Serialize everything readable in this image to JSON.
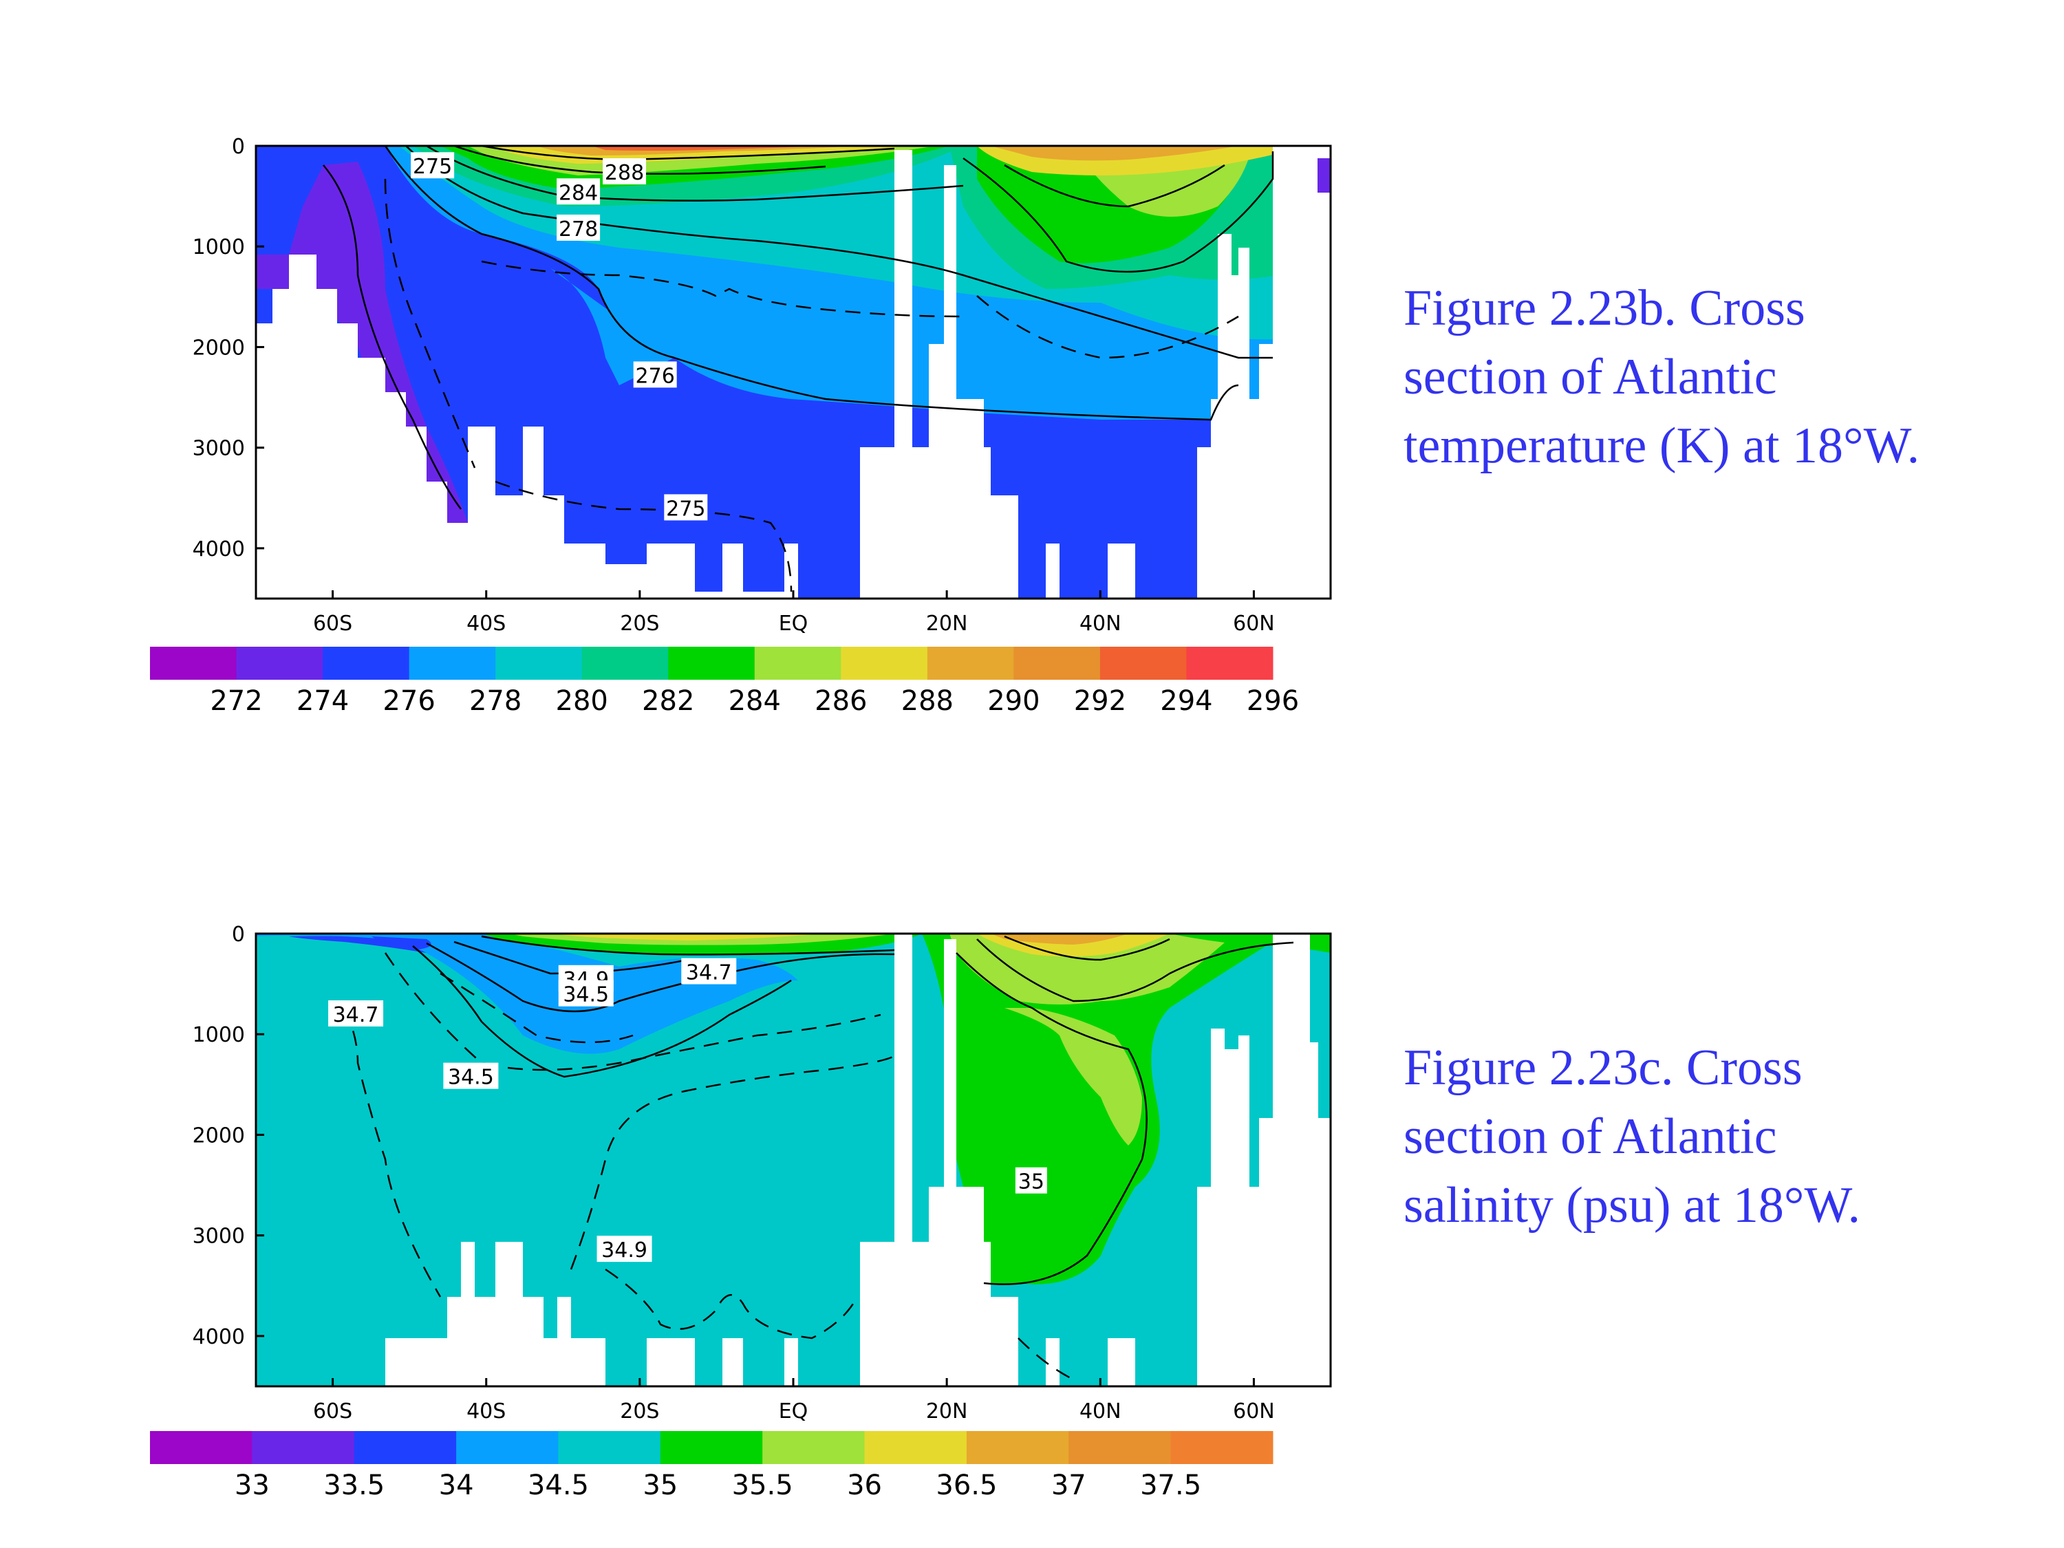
{
  "chart_data": [
    {
      "type": "heatmap",
      "title": "",
      "xlabel": "",
      "ylabel": "",
      "x_ticks": [
        "60S",
        "40S",
        "20S",
        "EQ",
        "20N",
        "40N",
        "60N"
      ],
      "x_tick_values": [
        -60,
        -40,
        -20,
        0,
        20,
        40,
        60
      ],
      "y_ticks": [
        "0",
        "1000",
        "2000",
        "3000",
        "4000"
      ],
      "y_tick_values": [
        0,
        1000,
        2000,
        3000,
        4000
      ],
      "xlim": [
        -70,
        70
      ],
      "ylim": [
        4500,
        0
      ],
      "colorbar": {
        "labels": [
          "272",
          "274",
          "276",
          "278",
          "280",
          "282",
          "284",
          "286",
          "288",
          "290",
          "292",
          "294",
          "296"
        ],
        "colors": [
          "#9b06c8",
          "#6a26e8",
          "#2040ff",
          "#08a0ff",
          "#00c8c8",
          "#00cc88",
          "#00d400",
          "#9fe23a",
          "#e6d92e",
          "#e6a82e",
          "#e6902e",
          "#f06030",
          "#f84048"
        ]
      },
      "contour_labels": [
        {
          "text": "288",
          "x": -22,
          "y": 260
        },
        {
          "text": "284",
          "x": -28,
          "y": 460
        },
        {
          "text": "278",
          "x": -28,
          "y": 820
        },
        {
          "text": "276",
          "x": -18,
          "y": 2280
        },
        {
          "text": "275",
          "x": -14,
          "y": 3600
        },
        {
          "text": "275",
          "x": -47,
          "y": 200
        }
      ]
    },
    {
      "type": "heatmap",
      "title": "",
      "xlabel": "",
      "ylabel": "",
      "x_ticks": [
        "60S",
        "40S",
        "20S",
        "EQ",
        "20N",
        "40N",
        "60N"
      ],
      "x_tick_values": [
        -60,
        -40,
        -20,
        0,
        20,
        40,
        60
      ],
      "y_ticks": [
        "0",
        "1000",
        "2000",
        "3000",
        "4000"
      ],
      "y_tick_values": [
        0,
        1000,
        2000,
        3000,
        4000
      ],
      "xlim": [
        -70,
        70
      ],
      "ylim": [
        4500,
        0
      ],
      "colorbar": {
        "labels": [
          "33",
          "33.5",
          "34",
          "34.5",
          "35",
          "35.5",
          "36",
          "36.5",
          "37",
          "37.5"
        ],
        "colors": [
          "#9b06c8",
          "#6a26e8",
          "#2040ff",
          "#08a0ff",
          "#00c8c8",
          "#00d400",
          "#9fe23a",
          "#e6d92e",
          "#e6a82e",
          "#e6902e",
          "#f08030"
        ]
      },
      "contour_labels": [
        {
          "text": "34.7",
          "x": -57,
          "y": 800
        },
        {
          "text": "34.9",
          "x": -27,
          "y": 450
        },
        {
          "text": "34.5",
          "x": -27,
          "y": 600
        },
        {
          "text": "34.7",
          "x": -11,
          "y": 380
        },
        {
          "text": "34.5",
          "x": -42,
          "y": 1420
        },
        {
          "text": "35",
          "x": 31,
          "y": 2460
        },
        {
          "text": "34.9",
          "x": -22,
          "y": 3140
        }
      ]
    }
  ],
  "captions": [
    {
      "lines": [
        "Figure 2.23b.  Cross",
        "section of Atlantic",
        "temperature (K) at 18°W."
      ]
    },
    {
      "lines": [
        "Figure 2.23c.  Cross",
        "section of Atlantic",
        "salinity (psu) at 18°W."
      ]
    }
  ]
}
